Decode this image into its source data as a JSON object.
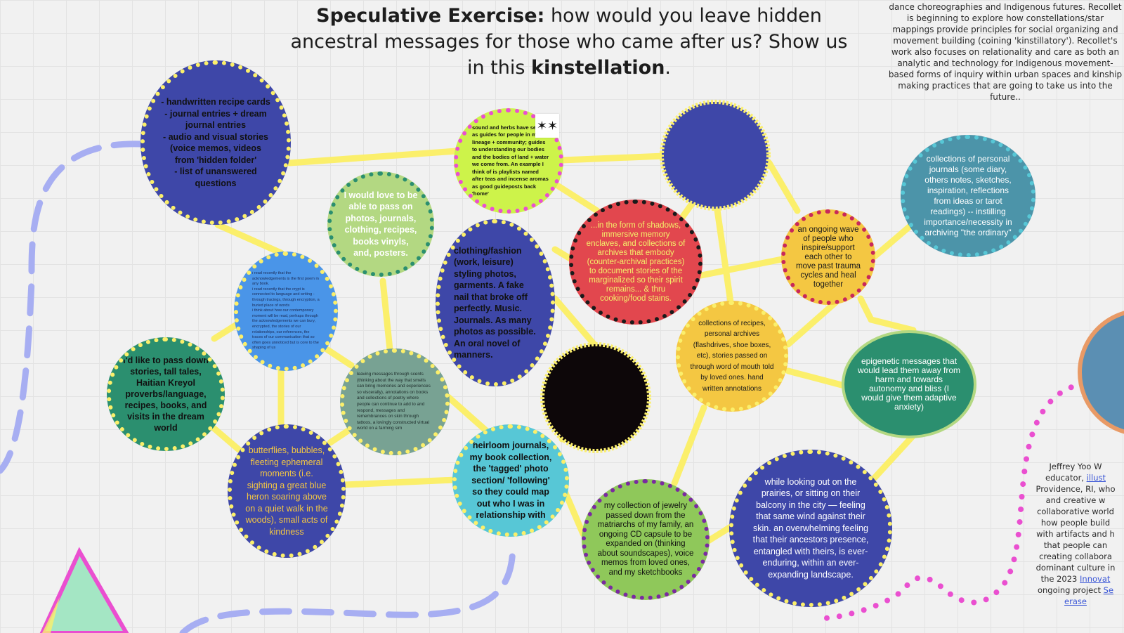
{
  "title": {
    "bold_lead": "Speculative Exercise:",
    "text": " how would you leave hidden ancestral messages for those who came after us? Show us in this ",
    "bold_word": "kinstellation",
    "end": "."
  },
  "note_top": "dance choreographies and Indigenous futures. Recollet is beginning to explore how constellations/star mappings provide principles for social organizing and movement building (coining 'kinstillatory'). Recollet's work also focuses on relationality and care as both an analytic and technology for Indigenous movement-based forms of inquiry within urban spaces and kinship making practices that are going to take us into the future..",
  "note_right": {
    "line1": "Jeffrey Yoo W",
    "line2": "educator,",
    "link1": "illust",
    "line3": "Providence, RI, who",
    "line4": "and creative w",
    "line5": "collaborative world",
    "line6": "how people build",
    "line7": "with artifacts and h",
    "line8": "that people can",
    "line9": "creating collabora",
    "line10": "dominant culture in",
    "line11": "the 2023",
    "link2": "Innovat",
    "line12": "ongoing project",
    "link3": "Se",
    "line13": "erase"
  },
  "star_symbol": "✶✶",
  "bubbles": {
    "recipe_cards": "- handwritten recipe cards\n- journal entries + dream journal entries\n- audio and visual stories (voice memos, videos from 'hidden folder'\n- list of unanswered questions",
    "sound_herbs": "sound and herbs have served as guides for people in my lineage + community; guides to understanding our bodies and the bodies of land + water we come from. An example I think of is playlists named after teas and incense aromas as good guideposts back 'home'",
    "pass_on": "I would love to be able to pass on photos, journals, clothing, recipes, books vinyls, and, posters.",
    "crypt": "i read recently that the acknowledgements is the first poem in any book.\ni read recently that the crypt is connected to language and writing - through tracings, through encryption, a buried place of words\ni think about how our contemporary moment will be read, perhaps through the acknowledgements we can bury, encrypted, the stories of our relationships, our references, the traces of our communication that so often goes unnoticed but is core to the shaping of us",
    "tall_tales": "I'd like to pass down stories, tall tales, Haitian Kreyol proverbs/language, recipes, books, and visits in the dream world",
    "scents": "leaving messages through scents (thinking about the way that smells can bring memories and experiences so viscerally), annotations on books and collections of poetry where people can continue to add to and respond, messages and remembrances on skin through tattoos, a lovingly constructed virtual world on a farming sim",
    "butterflies": "butterflies, bubbles, fleeting ephemeral moments (i.e. sighting a great blue heron soaring above on a quiet walk in the woods), small acts of kindness",
    "clothing_fashion": "clothing/fashion (work, leisure) styling photos, garments. A fake nail that broke off perfectly. Music. Journals. As many photos as possible. An oral novel of manners.",
    "shadows": "...in the form of shadows, immersive memory enclaves, and collections of archives that embody (counter-archival practices) to document stories of the marginalized so their spirit remains... & thru cooking/food stains.",
    "heirloom": "heirloom journals, my book collection, the 'tagged' photo section/ 'following' so they could map out who I was in relationship with",
    "collections_recipes": "collections of recipes, personal archives (flashdrives, shoe boxes, etc), stories passed on through word of mouth told by loved ones. hand written annotations",
    "ongoing_wave": "an ongoing wave of people who inspire/support each other to move past trauma cycles and heal together",
    "personal_journals": "collections of personal journals (some diary, others notes, sketches, inspiration, reflections from ideas or tarot readings) -- instilling importance/necessity in archiving \"the ordinary\"",
    "epigenetic": "epigenetic messages that would lead them away from harm and towards autonomy and bliss (I would give them adaptive anxiety)",
    "jewelry": "my collection of jewelry passed down from the matriarchs of my family, an ongoing CD capsule to be expanded on (thinking about soundscapes), voice memos from loved ones, and my sketchbooks",
    "prairies": "while looking out on the prairies, or sitting on their balcony in the city — feeling that same wind against their skin. an overwhelming feeling that their ancestors presence, entangled with theirs, is ever-enduring, within an ever-expanding landscape."
  },
  "colors": {
    "background": "#f1f1f1",
    "connector": "#fbef6b",
    "dashed_path": "#a7aef2",
    "dotted_path": "#ea4fd0",
    "navy": "#3e47a8",
    "lime": "#cdf34a",
    "light_green": "#b3d882",
    "sky_blue": "#4a95e8",
    "teal_green": "#2b8f6f",
    "sage": "#78a293",
    "red": "#e2474e",
    "black": "#0d0709",
    "cyan": "#57c7d6",
    "gold": "#f4c742",
    "steel_teal": "#4c94a9",
    "mint_triangle": "#a4e6c4",
    "magenta_triangle": "#ea4fd0"
  }
}
